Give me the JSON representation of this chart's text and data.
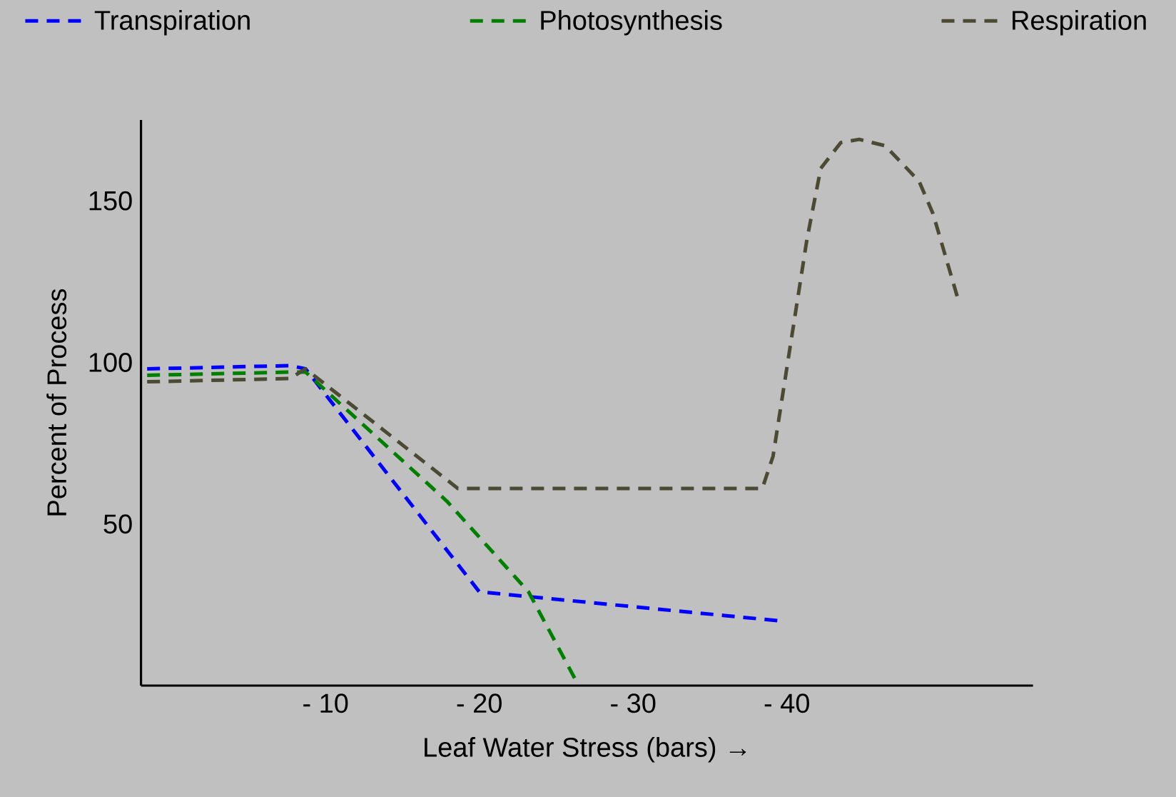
{
  "chart_data": {
    "type": "line",
    "xlabel": "Leaf Water Stress (bars) →",
    "ylabel": "Percent of Process",
    "xlim": [
      2,
      -56
    ],
    "ylim": [
      0,
      175
    ],
    "xticks": [
      {
        "value": -10,
        "label": "- 10"
      },
      {
        "value": -20,
        "label": "- 20"
      },
      {
        "value": -30,
        "label": "- 30"
      },
      {
        "value": -40,
        "label": "- 40"
      }
    ],
    "yticks": [
      50,
      100,
      150
    ],
    "legend": "top",
    "line_style": "dashed",
    "marker": "none",
    "series": [
      {
        "name": "Transpiration",
        "color": "#0000ff",
        "x": [
          1.6,
          -7.7,
          -8.7,
          -20,
          -39.6
        ],
        "values": [
          98,
          99,
          98,
          29,
          20
        ]
      },
      {
        "name": "Photosynthesis",
        "color": "#008000",
        "x": [
          1.6,
          -7.7,
          -8.7,
          -17.9,
          -23.2,
          -26.3
        ],
        "values": [
          96,
          97,
          97,
          57,
          29,
          1.4
        ]
      },
      {
        "name": "Respiration",
        "color": "#4d4a33",
        "x": [
          1.6,
          -7.7,
          -8.7,
          -18.6,
          -38.4,
          -39.1,
          -41.3,
          -42.2,
          -43.5,
          -44.7,
          -46.4,
          -47.8,
          -48.6,
          -49.5,
          -51.1
        ],
        "values": [
          94,
          95,
          98,
          61,
          61,
          71,
          138,
          160,
          168,
          169,
          167,
          160,
          156,
          146,
          120
        ]
      }
    ]
  }
}
